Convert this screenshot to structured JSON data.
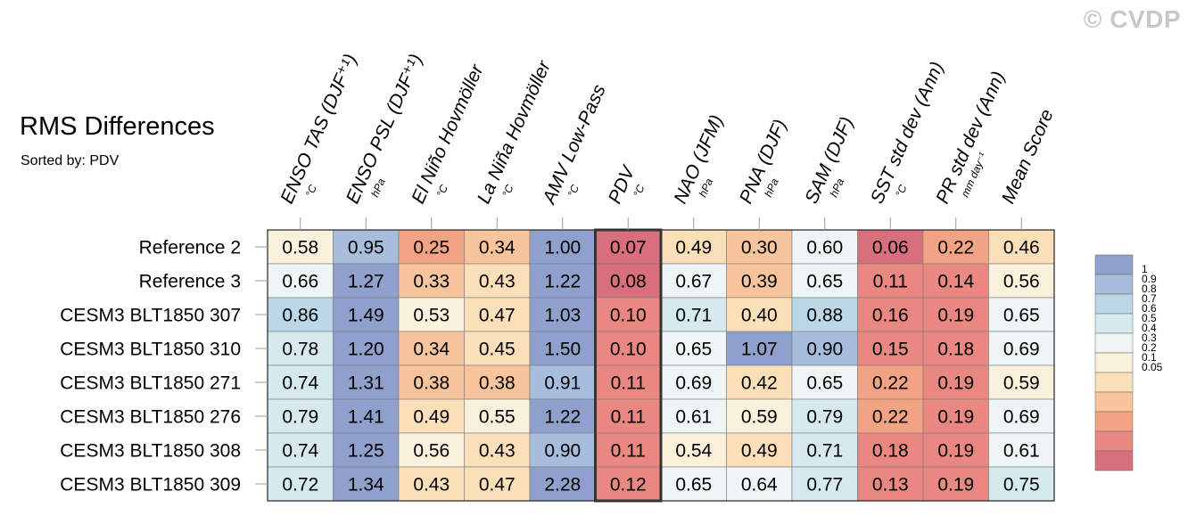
{
  "header": {
    "title": "RMS Differences",
    "subtitle": "Sorted by: PDV",
    "watermark": "© CVDP"
  },
  "chart_data": {
    "type": "heatmap",
    "title": "RMS Differences",
    "subtitle": "Sorted by: PDV",
    "highlight_column": "PDV",
    "columns": [
      {
        "label": "ENSO TAS (DJF⁺¹)",
        "unit": "°C"
      },
      {
        "label": "ENSO PSL (DJF⁺¹)",
        "unit": "hPa"
      },
      {
        "label": "El Niño Hovmöller",
        "unit": "°C"
      },
      {
        "label": "La Niña Hovmöller",
        "unit": "°C"
      },
      {
        "label": "AMV Low-Pass",
        "unit": "°C"
      },
      {
        "label": "PDV",
        "unit": "°C"
      },
      {
        "label": "NAO (JFM)",
        "unit": "hPa"
      },
      {
        "label": "PNA (DJF)",
        "unit": "hPa"
      },
      {
        "label": "SAM (DJF)",
        "unit": "hPa"
      },
      {
        "label": "SST std dev (Ann)",
        "unit": "°C"
      },
      {
        "label": "PR std dev (Ann)",
        "unit": "mm day⁻¹"
      },
      {
        "label": "Mean Score",
        "unit": ""
      }
    ],
    "rows": [
      "Reference 2",
      "Reference 3",
      "CESM3 BLT1850 307",
      "CESM3 BLT1850 310",
      "CESM3 BLT1850 271",
      "CESM3 BLT1850 276",
      "CESM3 BLT1850 308",
      "CESM3 BLT1850 309"
    ],
    "values": [
      [
        "0.58",
        "0.95",
        "0.25",
        "0.34",
        "1.00",
        "0.07",
        "0.49",
        "0.30",
        "0.60",
        "0.06",
        "0.22",
        "0.46"
      ],
      [
        "0.66",
        "1.27",
        "0.33",
        "0.43",
        "1.22",
        "0.08",
        "0.67",
        "0.39",
        "0.65",
        "0.11",
        "0.14",
        "0.56"
      ],
      [
        "0.86",
        "1.49",
        "0.53",
        "0.47",
        "1.03",
        "0.10",
        "0.71",
        "0.40",
        "0.88",
        "0.16",
        "0.19",
        "0.65"
      ],
      [
        "0.78",
        "1.20",
        "0.34",
        "0.45",
        "1.50",
        "0.10",
        "0.65",
        "1.07",
        "0.90",
        "0.15",
        "0.18",
        "0.69"
      ],
      [
        "0.74",
        "1.31",
        "0.38",
        "0.38",
        "0.91",
        "0.11",
        "0.69",
        "0.42",
        "0.65",
        "0.22",
        "0.19",
        "0.59"
      ],
      [
        "0.79",
        "1.41",
        "0.49",
        "0.55",
        "1.22",
        "0.11",
        "0.61",
        "0.59",
        "0.79",
        "0.22",
        "0.19",
        "0.69"
      ],
      [
        "0.74",
        "1.25",
        "0.56",
        "0.43",
        "0.90",
        "0.11",
        "0.54",
        "0.49",
        "0.71",
        "0.18",
        "0.19",
        "0.61"
      ],
      [
        "0.72",
        "1.34",
        "0.43",
        "0.47",
        "2.28",
        "0.12",
        "0.65",
        "0.64",
        "0.77",
        "0.13",
        "0.19",
        "0.75"
      ]
    ],
    "colorbar": {
      "labels": [
        "1",
        "0.9",
        "0.8",
        "0.7",
        "0.6",
        "0.5",
        "0.4",
        "0.3",
        "0.2",
        "0.1",
        "0.05"
      ],
      "colors": [
        "#8fa0cd",
        "#a6bedc",
        "#bcd7e5",
        "#d5e9ef",
        "#eef5f4",
        "#faf1dd",
        "#fbdfb9",
        "#f8c49c",
        "#f2a384",
        "#e88880",
        "#d86f7c"
      ]
    }
  }
}
